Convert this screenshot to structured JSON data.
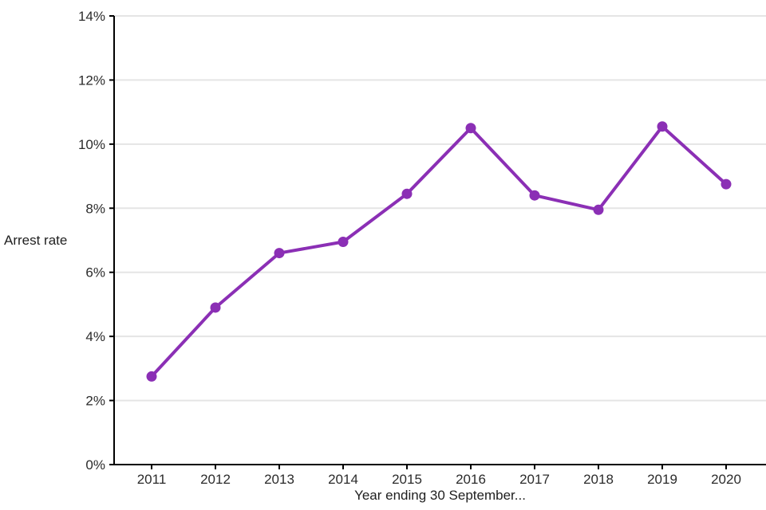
{
  "chart_data": {
    "type": "line",
    "title": "",
    "xlabel": "Year ending 30 September...",
    "ylabel": "Arrest rate",
    "categories": [
      "2011",
      "2012",
      "2013",
      "2014",
      "2015",
      "2016",
      "2017",
      "2018",
      "2019",
      "2020"
    ],
    "values": [
      2.75,
      4.9,
      6.6,
      6.95,
      8.45,
      10.5,
      8.4,
      7.95,
      10.55,
      8.75
    ],
    "series_name": "Arrest rate",
    "ylim": [
      0,
      14
    ],
    "ytick_step": 2,
    "ytick_labels": [
      "0%",
      "2%",
      "4%",
      "6%",
      "8%",
      "10%",
      "12%",
      "14%"
    ],
    "ytick_format": "percent",
    "grid": "horizontal major gridlines only",
    "legend": "none",
    "marker": "filled circle"
  },
  "colors": {
    "line": "#8B2FB5",
    "marker": "#8B2FB5",
    "gridline": "#E5E5E5",
    "axis": "#000000",
    "tick_label": "#2b2b2b",
    "background": "#FFFFFF"
  }
}
